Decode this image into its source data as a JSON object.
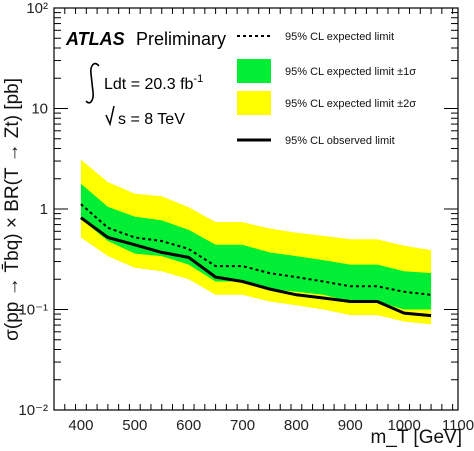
{
  "chart_data": {
    "type": "line",
    "xlabel": "m_T [GeV]",
    "ylabel": "σ(pp → T̄bq) × BR(T → Zt) [pb]",
    "xlim": [
      350,
      1100
    ],
    "ylim": [
      0.01,
      100
    ],
    "yscale": "log",
    "x_ticks": [
      "400",
      "500",
      "600",
      "700",
      "800",
      "900",
      "1000",
      "1100"
    ],
    "y_ticks": [
      {
        "value": 0.01,
        "label": "10⁻²"
      },
      {
        "value": 0.1,
        "label": "10⁻¹"
      },
      {
        "value": 1,
        "label": "1"
      },
      {
        "value": 10,
        "label": "10"
      },
      {
        "value": 100,
        "label": "10²"
      }
    ],
    "x": [
      400,
      450,
      500,
      550,
      600,
      650,
      700,
      750,
      800,
      850,
      900,
      950,
      1000,
      1050
    ],
    "series": [
      {
        "name": "95% CL expected limit",
        "style": "dashed",
        "values": [
          1.12,
          0.65,
          0.52,
          0.48,
          0.4,
          0.27,
          0.27,
          0.23,
          0.21,
          0.19,
          0.17,
          0.17,
          0.15,
          0.14
        ]
      },
      {
        "name": "95% CL observed limit",
        "style": "solid",
        "values": [
          0.82,
          0.52,
          0.44,
          0.37,
          0.33,
          0.21,
          0.19,
          0.16,
          0.14,
          0.13,
          0.12,
          0.12,
          0.092,
          0.087
        ]
      },
      {
        "name": "95% CL expected limit ±1σ",
        "style": "band",
        "low": [
          0.8,
          0.48,
          0.36,
          0.34,
          0.28,
          0.19,
          0.19,
          0.16,
          0.15,
          0.14,
          0.12,
          0.12,
          0.1,
          0.1
        ],
        "high": [
          1.78,
          1.05,
          0.84,
          0.77,
          0.62,
          0.44,
          0.44,
          0.37,
          0.34,
          0.31,
          0.28,
          0.28,
          0.24,
          0.23
        ]
      },
      {
        "name": "95% CL expected limit ±2σ",
        "style": "band",
        "low": [
          0.52,
          0.34,
          0.26,
          0.24,
          0.2,
          0.14,
          0.14,
          0.12,
          0.11,
          0.1,
          0.088,
          0.088,
          0.076,
          0.071
        ],
        "high": [
          3.1,
          1.85,
          1.42,
          1.34,
          1.04,
          0.74,
          0.74,
          0.64,
          0.58,
          0.54,
          0.5,
          0.5,
          0.43,
          0.39
        ]
      }
    ],
    "legend_position": "top-right",
    "annotations": {
      "atlas": "ATLAS",
      "preliminary": "Preliminary",
      "lumi_prefix": "Ldt = 20.3 fb",
      "lumi_sup": "-1",
      "energy": "s = 8 TeV"
    }
  },
  "colors": {
    "band_1sigma": "#00ee33",
    "band_2sigma": "#ffff00",
    "line": "#000000"
  }
}
